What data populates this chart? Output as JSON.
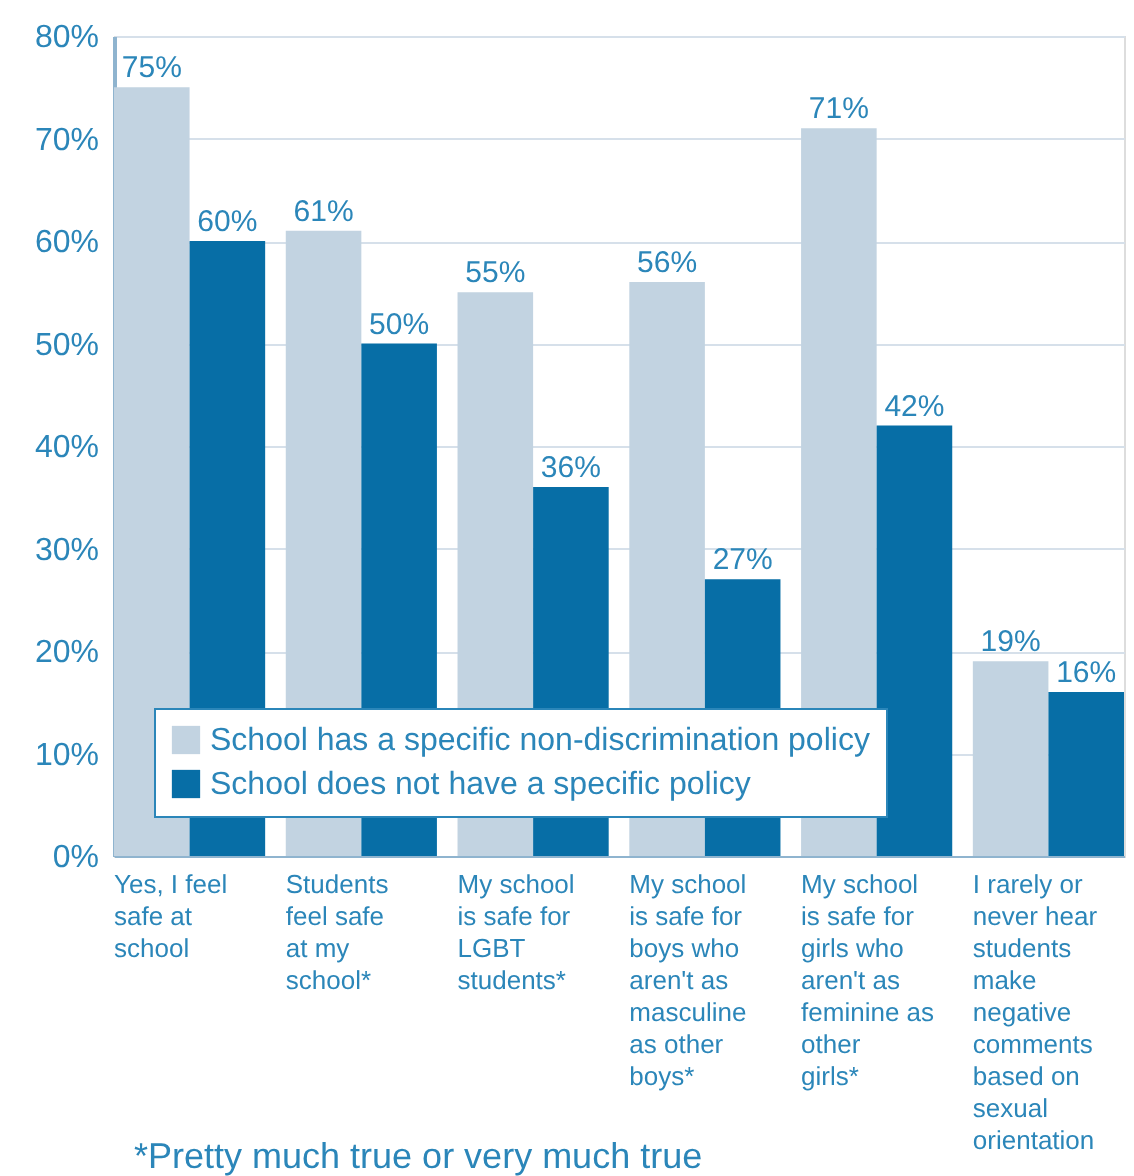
{
  "chart_data": {
    "type": "bar",
    "categories": [
      "Yes, I feel safe at school",
      "Students feel safe at my school*",
      "My school is safe for LGBT students*",
      "My school is safe for boys who aren't as masculine as other boys*",
      "My school is safe for girls who aren't as feminine as other girls*",
      "I rarely or never hear students make negative comments based on sexual orientation"
    ],
    "series": [
      {
        "name": "School has a specific non-discrimination policy",
        "color": "#c2d3e1",
        "values": [
          75,
          61,
          55,
          56,
          71,
          19
        ],
        "value_labels": [
          "75%",
          "61%",
          "55%",
          "56%",
          "71%",
          "19%"
        ]
      },
      {
        "name": "School does not have a specific policy",
        "color": "#076ea6",
        "values": [
          60,
          50,
          36,
          27,
          42,
          16
        ],
        "value_labels": [
          "60%",
          "50%",
          "36%",
          "27%",
          "42%",
          "16%"
        ]
      }
    ],
    "ylim": [
      0,
      80
    ],
    "yticks": [
      {
        "value": 0,
        "label": "0%"
      },
      {
        "value": 10,
        "label": "10%"
      },
      {
        "value": 20,
        "label": "20%"
      },
      {
        "value": 30,
        "label": "30%"
      },
      {
        "value": 40,
        "label": "40%"
      },
      {
        "value": 50,
        "label": "50%"
      },
      {
        "value": 60,
        "label": "60%"
      },
      {
        "value": 70,
        "label": "70%"
      },
      {
        "value": 80,
        "label": "80%"
      }
    ],
    "grid": "y",
    "legend": "bottom left",
    "annotations": [
      "*Pretty much true or very much true"
    ]
  }
}
